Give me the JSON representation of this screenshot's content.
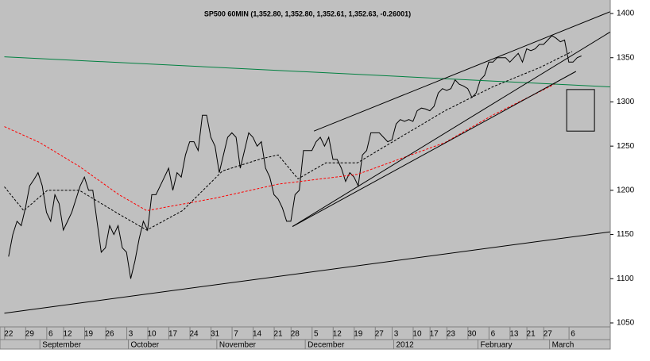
{
  "chart_data": {
    "type": "line",
    "title": "SP500 60MIN (1,352.80, 1,352.80, 1,352.61, 1,352.63, -0.26001)",
    "xlim": [
      -1.1,
      142.85
    ],
    "ylim": [
      1045.5,
      1410.8
    ],
    "yticks": [
      1050,
      1100,
      1150,
      1200,
      1250,
      1300,
      1350,
      1400
    ],
    "xticks": [
      {
        "value": 0,
        "label": "22"
      },
      {
        "value": 5,
        "label": "29"
      },
      {
        "value": 10,
        "label": "6"
      },
      {
        "value": 14,
        "label": "12"
      },
      {
        "value": 19,
        "label": "19"
      },
      {
        "value": 24,
        "label": "26"
      },
      {
        "value": 29,
        "label": "3"
      },
      {
        "value": 34,
        "label": "10"
      },
      {
        "value": 39,
        "label": "17"
      },
      {
        "value": 44,
        "label": "24"
      },
      {
        "value": 49,
        "label": "31"
      },
      {
        "value": 54,
        "label": "7"
      },
      {
        "value": 59,
        "label": "14"
      },
      {
        "value": 64,
        "label": "21"
      },
      {
        "value": 68,
        "label": "28"
      },
      {
        "value": 73,
        "label": "5"
      },
      {
        "value": 78,
        "label": "12"
      },
      {
        "value": 83,
        "label": "19"
      },
      {
        "value": 88,
        "label": "27"
      },
      {
        "value": 92,
        "label": "3"
      },
      {
        "value": 97,
        "label": "10"
      },
      {
        "value": 101,
        "label": "17"
      },
      {
        "value": 105,
        "label": "23"
      },
      {
        "value": 110,
        "label": "30"
      },
      {
        "value": 115,
        "label": "6"
      },
      {
        "value": 120,
        "label": "13"
      },
      {
        "value": 124,
        "label": "21"
      },
      {
        "value": 128,
        "label": "27"
      },
      {
        "value": 134,
        "label": "6"
      }
    ],
    "month_ticks": [
      {
        "value": 8,
        "label": "September"
      },
      {
        "value": 29,
        "label": "October"
      },
      {
        "value": 50,
        "label": "November"
      },
      {
        "value": 71,
        "label": "December"
      },
      {
        "value": 92,
        "label": "2012"
      },
      {
        "value": 112,
        "label": "February"
      },
      {
        "value": 129,
        "label": "March"
      }
    ],
    "series": [
      {
        "color": "#000000",
        "x": [
          0,
          1,
          2,
          3,
          4,
          5,
          6,
          7,
          8,
          9,
          10,
          11,
          12,
          13,
          14,
          15,
          16,
          17,
          18,
          19,
          20,
          21,
          22,
          23,
          24,
          25,
          26,
          27,
          28,
          29,
          30,
          31,
          32,
          33,
          34,
          35,
          36,
          37,
          38,
          39,
          40,
          41,
          42,
          43,
          44,
          45,
          46,
          47,
          48,
          49,
          50,
          51,
          52,
          53,
          54,
          55,
          56,
          57,
          58,
          59,
          60,
          61,
          62,
          63,
          64,
          65,
          66,
          67,
          68,
          69,
          70,
          71,
          72,
          73,
          74,
          75,
          76,
          77,
          78,
          79,
          80,
          81,
          82,
          83,
          84,
          85,
          86,
          87,
          88,
          89,
          90,
          91,
          92,
          93,
          94,
          95,
          96,
          97,
          98,
          99,
          100,
          101,
          102,
          103,
          104,
          105,
          106,
          107,
          108,
          109,
          110,
          111,
          112,
          113,
          114,
          115,
          116,
          117,
          118,
          119,
          120,
          121,
          122,
          123,
          124,
          125,
          126,
          127,
          128,
          129,
          130,
          131,
          132,
          133,
          134,
          135,
          136
        ],
        "values": [
          1125,
          1150,
          1165,
          1160,
          1180,
          1205,
          1212,
          1220,
          1205,
          1175,
          1165,
          1195,
          1185,
          1155,
          1165,
          1175,
          1190,
          1205,
          1215,
          1200,
          1200,
          1165,
          1130,
          1135,
          1160,
          1150,
          1160,
          1135,
          1130,
          1100,
          1120,
          1145,
          1165,
          1155,
          1195,
          1195,
          1205,
          1215,
          1225,
          1200,
          1220,
          1215,
          1240,
          1255,
          1255,
          1245,
          1285,
          1285,
          1260,
          1250,
          1220,
          1240,
          1260,
          1265,
          1260,
          1225,
          1245,
          1265,
          1260,
          1250,
          1255,
          1225,
          1215,
          1195,
          1190,
          1180,
          1165,
          1165,
          1195,
          1200,
          1245,
          1245,
          1245,
          1255,
          1260,
          1250,
          1260,
          1235,
          1235,
          1225,
          1210,
          1220,
          1215,
          1205,
          1240,
          1245,
          1265,
          1265,
          1265,
          1260,
          1255,
          1257,
          1275,
          1280,
          1278,
          1280,
          1278,
          1290,
          1293,
          1292,
          1290,
          1295,
          1310,
          1315,
          1313,
          1315,
          1325,
          1320,
          1318,
          1315,
          1305,
          1310,
          1325,
          1330,
          1345,
          1345,
          1350,
          1350,
          1350,
          1345,
          1350,
          1355,
          1345,
          1360,
          1358,
          1360,
          1365,
          1365,
          1370,
          1375,
          1372,
          1368,
          1370,
          1345,
          1345,
          1350,
          1352
        ]
      },
      {
        "color": "#ff0000",
        "dash": true,
        "x": [
          -1,
          7.4,
          16.8,
          26.2,
          32.8,
          48.9,
          64,
          82.8,
          103.6,
          114.9,
          130
        ],
        "values": [
          1272,
          1254,
          1227,
          1195,
          1177,
          1191,
          1207,
          1218,
          1254,
          1285,
          1321
        ]
      },
      {
        "color": "#000000",
        "dash": true,
        "x": [
          -1,
          3.6,
          9.2,
          16.8,
          26.2,
          32.8,
          41.3,
          50.8,
          60.2,
          64,
          68.7,
          75.3,
          82.8,
          92.3,
          103.6,
          114.9,
          126.2,
          133.8
        ],
        "values": [
          1204,
          1177,
          1200,
          1200,
          1173,
          1155,
          1177,
          1222,
          1236,
          1240,
          1213,
          1231,
          1231,
          1258,
          1290,
          1317,
          1339,
          1357
        ]
      },
      {
        "color": "#008040",
        "x": [
          -1,
          142.8
        ],
        "values": [
          1351,
          1317
        ]
      },
      {
        "color": "#000000",
        "x": [
          72.5,
          142.8
        ],
        "values": [
          1267,
          1402
        ]
      },
      {
        "color": "#000000",
        "x": [
          67.4,
          142.8
        ],
        "values": [
          1159,
          1379
        ]
      },
      {
        "color": "#000000",
        "x": [
          67.4,
          134.7
        ],
        "values": [
          1159,
          1334.5
        ]
      },
      {
        "color": "#000000",
        "x": [
          -1,
          142.8
        ],
        "values": [
          1061,
          1153
        ]
      }
    ],
    "box_x": [
      132.5,
      139.1
    ],
    "box_y": [
      1267,
      1314
    ]
  }
}
